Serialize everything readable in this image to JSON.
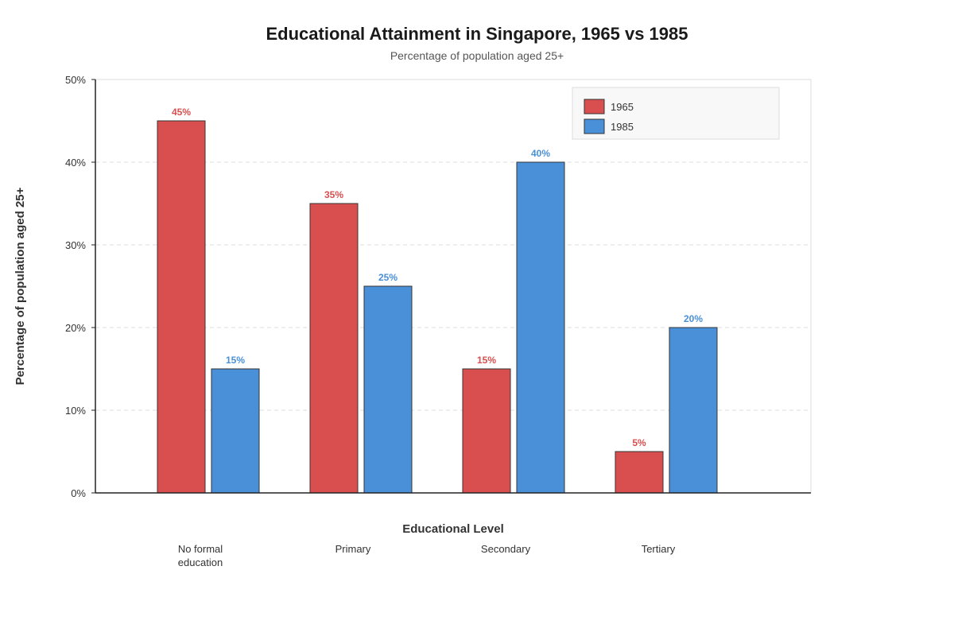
{
  "chart_data": {
    "type": "bar",
    "title": "Educational Attainment in Singapore, 1965 vs 1985",
    "subtitle": "Percentage of population aged 25+",
    "xlabel": "Educational Level",
    "ylabel": "Percentage of population aged 25+",
    "categories": [
      [
        "No formal",
        "education"
      ],
      [
        "Primary"
      ],
      [
        "Secondary"
      ],
      [
        "Tertiary"
      ]
    ],
    "series": [
      {
        "name": "1965",
        "color": "#d94f4f",
        "values": [
          45,
          35,
          15,
          5
        ]
      },
      {
        "name": "1985",
        "color": "#4a90d9",
        "values": [
          15,
          25,
          40,
          20
        ]
      }
    ],
    "ylim": [
      0,
      50
    ],
    "yticks": [
      0,
      10,
      20,
      30,
      40,
      50
    ],
    "tick_suffix": "%",
    "value_suffix": "%",
    "grid": true,
    "legend_position": "top-right"
  }
}
